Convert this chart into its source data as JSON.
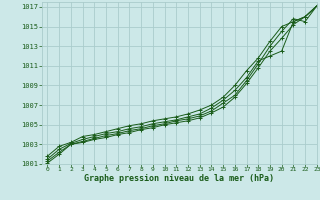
{
  "title": "Graphe pression niveau de la mer (hPa)",
  "bg_color": "#cce8e8",
  "grid_color": "#aacccc",
  "line_color": "#1a5c1a",
  "xlim": [
    -0.5,
    23
  ],
  "ylim": [
    1001,
    1017.5
  ],
  "yticks": [
    1001,
    1003,
    1005,
    1007,
    1009,
    1011,
    1013,
    1015,
    1017
  ],
  "xticks": [
    0,
    1,
    2,
    3,
    4,
    5,
    6,
    7,
    8,
    9,
    10,
    11,
    12,
    13,
    14,
    15,
    16,
    17,
    18,
    19,
    20,
    21,
    22,
    23
  ],
  "series": [
    [
      1001.1,
      1002.0,
      1003.0,
      1003.2,
      1003.5,
      1003.7,
      1004.0,
      1004.2,
      1004.5,
      1004.7,
      1005.0,
      1005.2,
      1005.4,
      1005.7,
      1006.2,
      1006.8,
      1007.8,
      1009.2,
      1010.8,
      1012.5,
      1013.8,
      1015.2,
      1016.0,
      1017.1
    ],
    [
      1001.3,
      1002.2,
      1003.0,
      1003.3,
      1003.6,
      1003.9,
      1004.1,
      1004.4,
      1004.6,
      1004.9,
      1005.1,
      1005.4,
      1005.6,
      1005.9,
      1006.4,
      1007.2,
      1008.0,
      1009.5,
      1011.2,
      1013.0,
      1014.5,
      1015.8,
      1015.5,
      1017.1
    ],
    [
      1001.5,
      1002.5,
      1003.1,
      1003.5,
      1003.8,
      1004.1,
      1004.3,
      1004.6,
      1004.8,
      1005.1,
      1005.3,
      1005.5,
      1005.8,
      1006.1,
      1006.7,
      1007.5,
      1008.5,
      1009.8,
      1011.5,
      1012.0,
      1012.5,
      1015.5,
      1016.0,
      1017.1
    ],
    [
      1001.8,
      1002.8,
      1003.2,
      1003.8,
      1004.0,
      1004.3,
      1004.6,
      1004.9,
      1005.1,
      1005.4,
      1005.6,
      1005.8,
      1006.1,
      1006.5,
      1007.0,
      1007.8,
      1009.0,
      1010.5,
      1011.8,
      1013.5,
      1015.0,
      1015.5,
      1016.0,
      1017.1
    ]
  ],
  "figsize": [
    3.2,
    2.0
  ],
  "dpi": 100
}
